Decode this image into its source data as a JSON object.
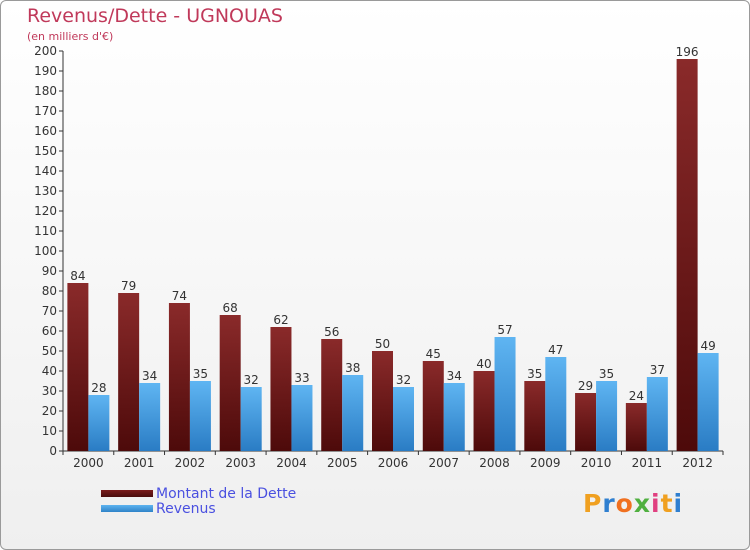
{
  "header": {
    "title": "Revenus/Dette - UGNOUAS",
    "subtitle": "(en milliers d'€)"
  },
  "legend": {
    "dette_label": "Montant de la Dette",
    "revenus_label": "Revenus"
  },
  "logo": {
    "letters": [
      "P",
      "r",
      "o",
      "x",
      "i",
      "t",
      "i"
    ],
    "colors": [
      "#f0a020",
      "#2f7fd0",
      "#f07020",
      "#50b040",
      "#e04080",
      "#f0a020",
      "#2f7fd0"
    ]
  },
  "colors": {
    "dette": "#7a1c1c",
    "revenus": "#3f9be0",
    "title": "#c0395a",
    "legend_text": "#4a50e0"
  },
  "chart_data": {
    "type": "bar",
    "categories": [
      "2000",
      "2001",
      "2002",
      "2003",
      "2004",
      "2005",
      "2006",
      "2007",
      "2008",
      "2009",
      "2010",
      "2011",
      "2012"
    ],
    "series": [
      {
        "name": "Montant de la Dette",
        "values": [
          84,
          79,
          74,
          68,
          62,
          56,
          50,
          45,
          40,
          35,
          29,
          24,
          196
        ]
      },
      {
        "name": "Revenus",
        "values": [
          28,
          34,
          35,
          32,
          33,
          38,
          32,
          34,
          57,
          47,
          35,
          37,
          49
        ]
      }
    ],
    "ylim": [
      0,
      200
    ],
    "ytick_step": 10,
    "grid": false,
    "legend_position": "bottom-left"
  }
}
